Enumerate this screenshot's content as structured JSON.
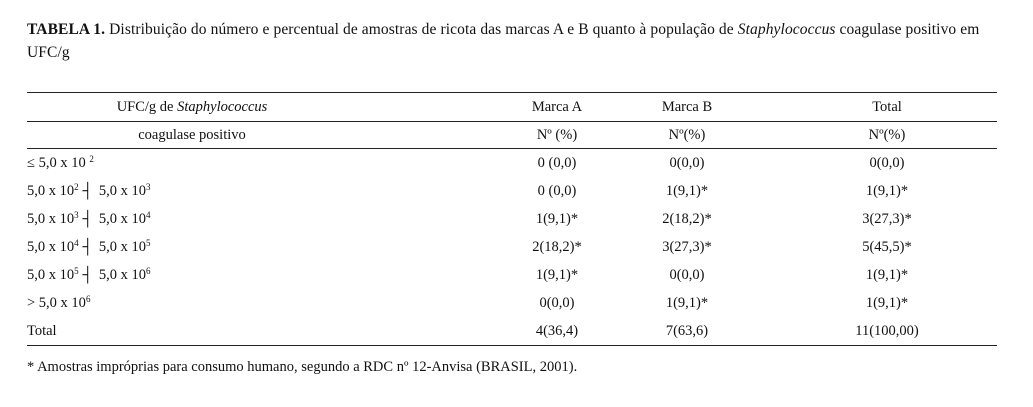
{
  "caption": {
    "label": "TABELA 1.",
    "text_before_italic": " Distribuição do número e percentual de amostras de ricota das marcas A e B quanto à população de ",
    "italic": "Staphylococcus",
    "text_after_italic": " coagulase positivo em UFC/g"
  },
  "table": {
    "header1": {
      "col0_prefix": "UFC/g de ",
      "col0_italic": "Staphylococcus",
      "col1": "Marca A",
      "col2": "Marca B",
      "col3": "Total"
    },
    "header2": {
      "col0": "coagulase positivo",
      "col1": "Nº (%)",
      "col2": "Nº(%)",
      "col3": "Nº(%)"
    },
    "separator": "┤",
    "rows": [
      {
        "prefix": "≤ 5,0 x 10 ",
        "sup": "2",
        "marca_a": "0 (0,0)",
        "marca_b": "0(0,0)",
        "total": "0(0,0)"
      },
      {
        "prefix": "5,0 x 10",
        "sup": "2",
        "suffix": "5,0 x 10",
        "sup2": "3",
        "marca_a": "0 (0,0)",
        "marca_b": "1(9,1)*",
        "total": "1(9,1)*"
      },
      {
        "prefix": "5,0 x 10",
        "sup": "3",
        "suffix": "5,0 x 10",
        "sup2": "4",
        "marca_a": "1(9,1)*",
        "marca_b": "2(18,2)*",
        "total": "3(27,3)*"
      },
      {
        "prefix": "5,0 x 10",
        "sup": "4",
        "suffix": "5,0 x 10",
        "sup2": "5",
        "marca_a": "2(18,2)*",
        "marca_b": "3(27,3)*",
        "total": "5(45,5)*"
      },
      {
        "prefix": "5,0 x 10",
        "sup": "5",
        "suffix": "5,0 x 10",
        "sup2": "6",
        "marca_a": "1(9,1)*",
        "marca_b": "0(0,0)",
        "total": "1(9,1)*"
      },
      {
        "prefix": "> 5,0 x 10",
        "sup": "6",
        "marca_a": "0(0,0)",
        "marca_b": "1(9,1)*",
        "total": "1(9,1)*"
      },
      {
        "prefix": "Total",
        "marca_a": "4(36,4)",
        "marca_b": "7(63,6)",
        "total": "11(100,00)"
      }
    ]
  },
  "footnote": "* Amostras impróprias para consumo humano, segundo a RDC nº 12-Anvisa (BRASIL, 2001)."
}
